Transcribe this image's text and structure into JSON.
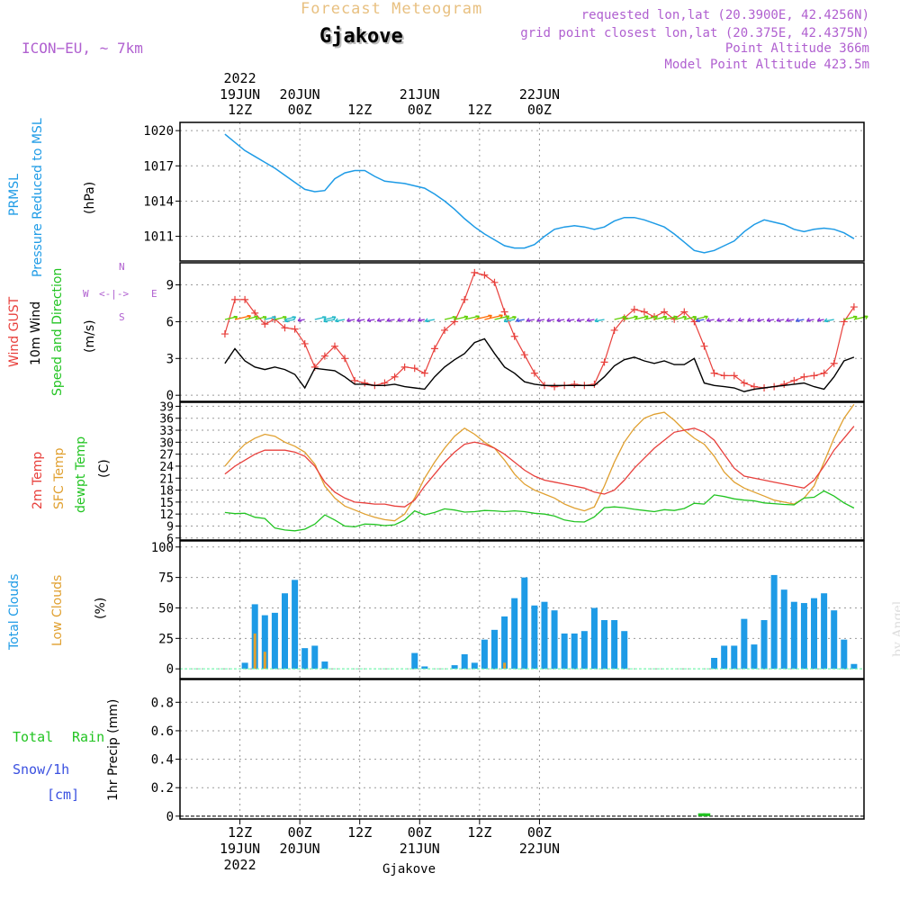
{
  "header": {
    "title": "Forecast Meteogram",
    "location": "Gjakove",
    "model": "ICON−EU, ~ 7km",
    "requested": "requested lon,lat (20.3900E, 42.4256N)",
    "gridpoint": "grid point closest lon,lat (20.375E, 42.4375N)",
    "point_alt": "Point Altitude 366m",
    "model_alt": "Model Point Altitude 423.5m",
    "footer_location": "Gjakove",
    "credit": "by Angel"
  },
  "time_axis": {
    "year": "2022",
    "ticks": [
      {
        "hour": "12Z",
        "date": "19JUN",
        "year": "2022"
      },
      {
        "hour": "00Z",
        "date": "20JUN",
        "year": ""
      },
      {
        "hour": "12Z",
        "date": "",
        "year": ""
      },
      {
        "hour": "00Z",
        "date": "21JUN",
        "year": ""
      },
      {
        "hour": "12Z",
        "date": "",
        "year": ""
      },
      {
        "hour": "00Z",
        "date": "22JUN",
        "year": ""
      }
    ]
  },
  "panel_labels": {
    "pressure": {
      "a": "PRMSL",
      "b": "Pressure Reduced to MSL",
      "unit": "(hPa)"
    },
    "wind": {
      "a": "Wind GUST",
      "b": "10m Wind",
      "c": "Speed and Direction",
      "unit": "(m/s)"
    },
    "compass": {
      "n": "N",
      "s": "S",
      "e": "E",
      "w": "W"
    },
    "temp": {
      "a": "2m Temp",
      "b": "SFC Temp",
      "c": "dewpt Temp",
      "unit": "(C)"
    },
    "cloud": {
      "a": "Total Clouds",
      "b": "Low Clouds",
      "unit": "(%)"
    },
    "precip": {
      "a": "Total",
      "b": "Rain",
      "c": "Snow/1h",
      "d": "[cm]",
      "unit": "1hr Precip (mm)"
    }
  },
  "colors": {
    "pressure": "#1e9be6",
    "gust": "#e8403c",
    "wind": "#000000",
    "t2m": "#e8403c",
    "sfc": "#e0a030",
    "dew": "#22c422",
    "total_cloud": "#1e9be6",
    "low_cloud": "#e0a030",
    "title": "#e8c080",
    "purple": "#b060d0",
    "grid": "#9a9a9a"
  },
  "chart_data": [
    {
      "type": "line",
      "id": "pressure",
      "ylabel": "(hPa)",
      "ylim": [
        1008.9,
        1020.7
      ],
      "yticks": [
        1011,
        1014,
        1017,
        1020
      ],
      "x_hours": [
        0,
        2,
        4,
        6,
        8,
        10,
        12,
        14,
        16,
        18,
        20,
        22,
        24,
        26,
        28,
        30,
        32,
        34,
        36,
        38,
        40,
        42,
        44,
        46,
        48,
        50,
        52,
        54,
        56,
        58,
        60,
        62,
        64,
        66,
        68,
        70,
        72,
        74,
        76,
        78,
        80,
        82,
        84,
        86,
        88,
        90,
        92,
        94,
        96,
        98,
        100,
        102,
        104,
        106,
        108,
        110,
        112,
        114,
        116,
        118,
        120,
        122,
        124,
        126
      ],
      "series": [
        {
          "values": [
            1019.7,
            1019.0,
            1018.3,
            1017.8,
            1017.3,
            1016.8,
            1016.2,
            1015.6,
            1015.0,
            1014.8,
            1014.9,
            1015.9,
            1016.4,
            1016.6,
            1016.6,
            1016.1,
            1015.7,
            1015.6,
            1015.5,
            1015.3,
            1015.1,
            1014.6,
            1014.0,
            1013.3,
            1012.5,
            1011.8,
            1011.2,
            1010.7,
            1010.2,
            1010.0,
            1010.0,
            1010.3,
            1011.0,
            1011.6,
            1011.8,
            1011.9,
            1011.8,
            1011.6,
            1011.8,
            1012.3,
            1012.6,
            1012.6,
            1012.4,
            1012.1,
            1011.8,
            1011.2,
            1010.5,
            1009.8,
            1009.6,
            1009.8,
            1010.2,
            1010.6,
            1011.4,
            1012.0,
            1012.4,
            1012.2,
            1012.0,
            1011.6,
            1011.4,
            1011.6,
            1011.7,
            1011.6,
            1011.3,
            1010.8
          ]
        }
      ]
    },
    {
      "type": "line",
      "id": "wind",
      "ylabel": "(m/s)",
      "ylim": [
        -0.5,
        10.8
      ],
      "yticks": [
        0,
        3,
        6,
        9
      ],
      "x_hours": [
        0,
        2,
        4,
        6,
        8,
        10,
        12,
        14,
        16,
        18,
        20,
        22,
        24,
        26,
        28,
        30,
        32,
        34,
        36,
        38,
        40,
        42,
        44,
        46,
        48,
        50,
        52,
        54,
        56,
        58,
        60,
        62,
        64,
        66,
        68,
        70,
        72,
        74,
        76,
        78,
        80,
        82,
        84,
        86,
        88,
        90,
        92,
        94,
        96,
        98,
        100,
        102,
        104,
        106,
        108,
        110,
        112,
        114,
        116,
        118,
        120,
        122,
        124,
        126
      ],
      "series": [
        {
          "name": "Wind GUST",
          "values": [
            5.0,
            7.8,
            7.8,
            6.7,
            5.8,
            6.2,
            5.5,
            5.4,
            4.2,
            2.3,
            3.2,
            4.0,
            3.0,
            1.2,
            1.0,
            0.8,
            1.0,
            1.5,
            2.3,
            2.2,
            1.8,
            3.8,
            5.3,
            6.0,
            7.8,
            10.0,
            9.8,
            9.2,
            6.8,
            4.8,
            3.3,
            1.8,
            0.8,
            0.7,
            0.8,
            0.9,
            0.8,
            0.9,
            2.7,
            5.3,
            6.3,
            7.0,
            6.8,
            6.4,
            6.8,
            6.2,
            6.8,
            6.0,
            4.0,
            1.8,
            1.6,
            1.6,
            1.0,
            0.7,
            0.6,
            0.7,
            0.9,
            1.2,
            1.5,
            1.6,
            1.8,
            2.6,
            6.0,
            7.2
          ]
        },
        {
          "name": "10m Wind",
          "values": [
            2.6,
            3.8,
            2.8,
            2.3,
            2.1,
            2.3,
            2.1,
            1.7,
            0.6,
            2.2,
            2.1,
            2.0,
            1.5,
            0.9,
            0.9,
            0.8,
            0.8,
            0.9,
            0.7,
            0.6,
            0.5,
            1.5,
            2.3,
            2.9,
            3.4,
            4.3,
            4.6,
            3.4,
            2.3,
            1.8,
            1.1,
            0.9,
            0.8,
            0.8,
            0.8,
            0.8,
            0.8,
            0.8,
            1.5,
            2.4,
            2.9,
            3.1,
            2.8,
            2.6,
            2.8,
            2.5,
            2.5,
            3.0,
            1.0,
            0.8,
            0.7,
            0.6,
            0.3,
            0.5,
            0.6,
            0.7,
            0.8,
            0.9,
            1.0,
            0.7,
            0.5,
            1.5,
            2.8,
            3.1
          ]
        }
      ]
    },
    {
      "type": "line",
      "id": "temperature",
      "ylabel": "(C)",
      "ylim": [
        5.5,
        40
      ],
      "yticks": [
        6,
        9,
        12,
        15,
        18,
        21,
        24,
        27,
        30,
        33,
        36,
        39
      ],
      "x_hours": [
        0,
        2,
        4,
        6,
        8,
        10,
        12,
        14,
        16,
        18,
        20,
        22,
        24,
        26,
        28,
        30,
        32,
        34,
        36,
        38,
        40,
        42,
        44,
        46,
        48,
        50,
        52,
        54,
        56,
        58,
        60,
        62,
        64,
        66,
        68,
        70,
        72,
        74,
        76,
        78,
        80,
        82,
        84,
        86,
        88,
        90,
        92,
        94,
        96,
        98,
        100,
        102,
        104,
        106,
        108,
        110,
        112,
        114,
        116,
        118,
        120,
        122,
        124,
        126
      ],
      "series": [
        {
          "name": "2m Temp",
          "values": [
            22,
            24,
            25.5,
            27,
            28,
            28,
            28,
            27.5,
            26.5,
            24,
            20,
            17.5,
            16,
            15,
            14.8,
            14.5,
            14.5,
            14,
            13.8,
            15.5,
            19,
            22,
            25,
            27.5,
            29.5,
            30,
            29.5,
            28.5,
            27,
            25,
            23,
            21.5,
            20.5,
            20,
            19.5,
            19,
            18.5,
            17.5,
            17,
            18,
            20.5,
            23.5,
            26,
            28.5,
            30.5,
            32.5,
            33,
            33.5,
            32.5,
            30.5,
            27,
            23.5,
            21.5,
            21,
            20.5,
            20,
            19.5,
            19,
            18.5,
            20.5,
            24,
            28,
            31,
            34
          ]
        },
        {
          "name": "SFC Temp",
          "values": [
            24,
            27,
            29.5,
            31,
            32,
            31.5,
            30,
            29,
            27.5,
            24.5,
            19,
            16,
            14,
            13,
            12,
            11.2,
            10.6,
            10.3,
            12,
            16,
            21,
            25,
            28.5,
            31.5,
            33.5,
            32,
            30,
            28.5,
            25.5,
            22,
            19.5,
            18,
            17,
            16,
            14.5,
            13.5,
            12.8,
            13.8,
            19,
            25,
            30,
            33.5,
            36,
            37,
            37.5,
            35.5,
            33,
            31,
            29.5,
            26.5,
            22.5,
            20,
            18.5,
            17.5,
            16.5,
            15.5,
            15,
            14.5,
            16,
            19,
            25,
            31,
            36,
            39.5
          ]
        },
        {
          "name": "dewpt Temp",
          "values": [
            12.4,
            12.1,
            12.2,
            11.2,
            10.9,
            8.5,
            8.0,
            7.8,
            8.2,
            9.5,
            11.8,
            10.5,
            9.0,
            8.8,
            9.5,
            9.4,
            9.1,
            9.3,
            10.5,
            12.8,
            11.8,
            12.4,
            13.3,
            13.0,
            12.5,
            12.6,
            12.9,
            12.8,
            12.6,
            12.8,
            12.6,
            12.2,
            12.0,
            11.5,
            10.5,
            10.1,
            10.0,
            11.3,
            13.6,
            13.8,
            13.6,
            13.2,
            12.9,
            12.6,
            13.1,
            12.9,
            13.4,
            14.7,
            14.5,
            16.8,
            16.4,
            15.8,
            15.5,
            15.3,
            14.8,
            14.6,
            14.4,
            14.3,
            16.0,
            16.2,
            17.8,
            16.5,
            14.8,
            13.5
          ]
        }
      ]
    },
    {
      "type": "bar",
      "id": "clouds",
      "ylabel": "(%)",
      "ylim": [
        -8,
        105
      ],
      "yticks": [
        0,
        25,
        50,
        75,
        100
      ],
      "x_hours": [
        0,
        2,
        4,
        6,
        8,
        10,
        12,
        14,
        16,
        18,
        20,
        22,
        24,
        26,
        28,
        30,
        32,
        34,
        36,
        38,
        40,
        42,
        44,
        46,
        48,
        50,
        52,
        54,
        56,
        58,
        60,
        62,
        64,
        66,
        68,
        70,
        72,
        74,
        76,
        78,
        80,
        82,
        84,
        86,
        88,
        90,
        92,
        94,
        96,
        98,
        100,
        102,
        104,
        106,
        108,
        110,
        112,
        114,
        116,
        118,
        120,
        122,
        124,
        126
      ],
      "series": [
        {
          "name": "Total Clouds",
          "values": [
            0,
            0,
            5,
            53,
            44,
            46,
            62,
            73,
            17,
            19,
            6,
            0,
            0,
            0,
            0,
            0,
            0,
            0,
            0,
            13,
            2,
            0,
            0,
            3,
            12,
            5,
            24,
            32,
            43,
            58,
            75,
            52,
            55,
            48,
            29,
            29,
            31,
            50,
            40,
            40,
            31,
            0,
            0,
            0,
            0,
            0,
            0,
            0,
            0,
            9,
            19,
            19,
            41,
            20,
            40,
            77,
            65,
            55,
            54,
            58,
            62,
            48,
            24,
            4
          ]
        },
        {
          "name": "Low Clouds",
          "values": [
            0,
            0,
            0,
            29,
            14,
            0,
            0,
            0,
            0,
            0,
            0,
            0,
            0,
            0,
            0,
            0,
            0,
            0,
            0,
            0,
            0,
            0,
            0,
            0,
            0,
            0,
            0,
            0,
            5,
            0,
            0,
            0,
            0,
            0,
            0,
            0,
            0,
            0,
            0,
            0,
            0,
            0,
            0,
            0,
            0,
            0,
            0,
            0,
            0,
            0,
            0,
            0,
            0,
            0,
            0,
            0,
            0,
            0,
            0,
            0,
            0,
            0,
            0,
            0
          ]
        }
      ]
    },
    {
      "type": "bar",
      "id": "precip",
      "ylabel": "1hr Precip (mm)",
      "ylim": [
        -0.02,
        0.96
      ],
      "yticks": [
        0,
        0.2,
        0.4,
        0.6,
        0.8
      ],
      "series": [
        {
          "name": "Total Rain",
          "x_hours": [
            95.5,
            96.5
          ],
          "values": [
            0.02,
            0.02
          ]
        }
      ]
    }
  ]
}
